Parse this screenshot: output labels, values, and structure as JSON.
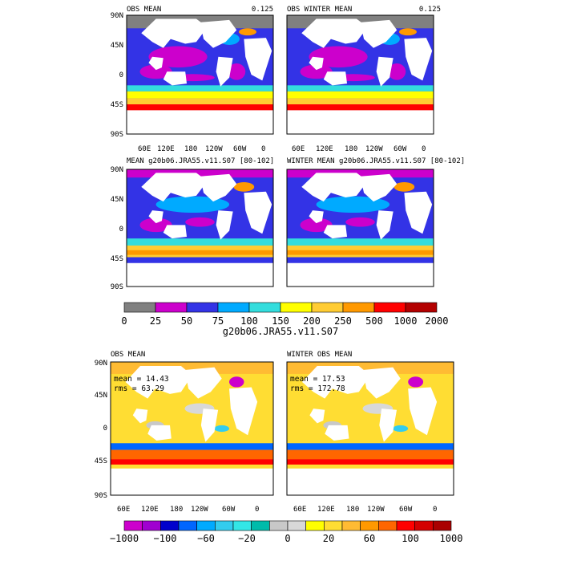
{
  "panels": [
    {
      "title": "OBS MEAN",
      "right": "0.125"
    },
    {
      "title": "OBS WINTER MEAN",
      "right": "0.125"
    },
    {
      "title": "MEAN g20b06.JRA55.v11.S07 [80-102]",
      "right": ""
    },
    {
      "title": "WINTER MEAN g20b06.JRA55.v11.S07 [80-102]",
      "right": ""
    },
    {
      "title": "OBS MEAN",
      "right": "",
      "stats": {
        "mean": "mean = 14.43",
        "rms": "rms = 63.29"
      }
    },
    {
      "title": "WINTER OBS MEAN",
      "right": "",
      "stats": {
        "mean": "mean = 17.53",
        "rms": "rms = 172.78"
      }
    }
  ],
  "lat_ticks": [
    "90N",
    "45N",
    "0",
    "45S",
    "90S"
  ],
  "lon_ticks": [
    "60E",
    "120E",
    "180",
    "120W",
    "60W",
    "0"
  ],
  "colorbar_top": {
    "labels": [
      "0",
      "25",
      "50",
      "75",
      "100",
      "150",
      "200",
      "250",
      "500",
      "1000",
      "2000"
    ],
    "colors": [
      "#808080",
      "#cc00cc",
      "#3333e6",
      "#00aaff",
      "#33dddd",
      "#ffff00",
      "#ffcc33",
      "#ff9900",
      "#ff0000",
      "#b30000"
    ],
    "title": "g20b06.JRA55.v11.S07"
  },
  "colorbar_bottom": {
    "labels": [
      "−1000",
      "−100",
      "−60",
      "−20",
      "0",
      "20",
      "60",
      "100",
      "1000"
    ],
    "colors": [
      "#cc00cc",
      "#a000d0",
      "#0000cc",
      "#0066ff",
      "#00aaff",
      "#33ccee",
      "#33e6e6",
      "#00bbaa",
      "#c8c8c8",
      "#d8d8d8",
      "#ffff00",
      "#ffdd33",
      "#ffbb33",
      "#ff9900",
      "#ff6600",
      "#ff0000",
      "#d40000",
      "#aa0000"
    ]
  }
}
